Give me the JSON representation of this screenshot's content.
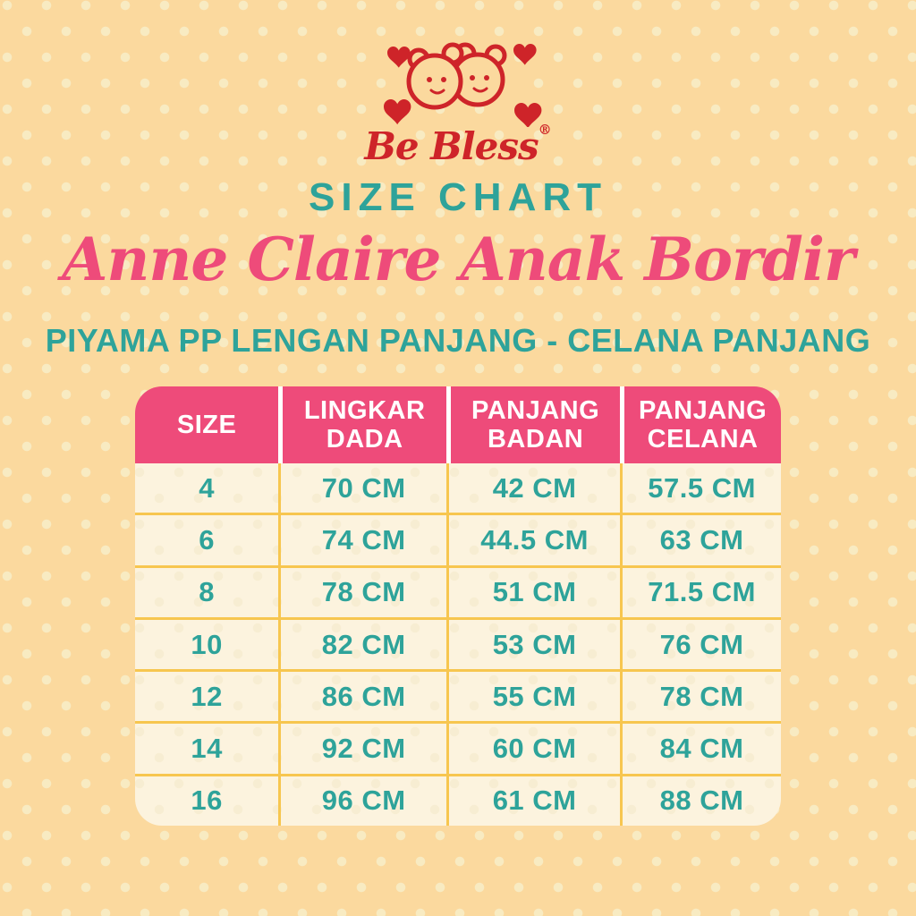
{
  "brand": {
    "name": "Be Bless",
    "registered_mark": "®"
  },
  "heading": {
    "kicker": "SIZE CHART",
    "title": "Anne Claire Anak Bordir",
    "subtitle": "PIYAMA PP LENGAN PANJANG - CELANA PANJANG"
  },
  "colors": {
    "background": "#FBD99E",
    "polka_dot": "#F8EBC2",
    "logo_red": "#CE2429",
    "teal": "#2EA39A",
    "pink": "#EE4B7A",
    "table_body": "#FCF3DE",
    "grid_line": "#F7C64F",
    "header_text": "#FFFFFF"
  },
  "chart_data": {
    "type": "table",
    "title": "SIZE CHART",
    "columns": [
      "SIZE",
      "LINGKAR DADA",
      "PANJANG BADAN",
      "PANJANG CELANA"
    ],
    "rows": [
      [
        "4",
        "70 CM",
        "42 CM",
        "57.5 CM"
      ],
      [
        "6",
        "74 CM",
        "44.5 CM",
        "63 CM"
      ],
      [
        "8",
        "78 CM",
        "51 CM",
        "71.5 CM"
      ],
      [
        "10",
        "82 CM",
        "53 CM",
        "76 CM"
      ],
      [
        "12",
        "86 CM",
        "55 CM",
        "78 CM"
      ],
      [
        "14",
        "92 CM",
        "60 CM",
        "84 CM"
      ],
      [
        "16",
        "96 CM",
        "61 CM",
        "88 CM"
      ]
    ],
    "units": "CM",
    "layout": {
      "grid": true,
      "header_background": "#EE4B7A",
      "value_color": "#2EA39A"
    }
  }
}
